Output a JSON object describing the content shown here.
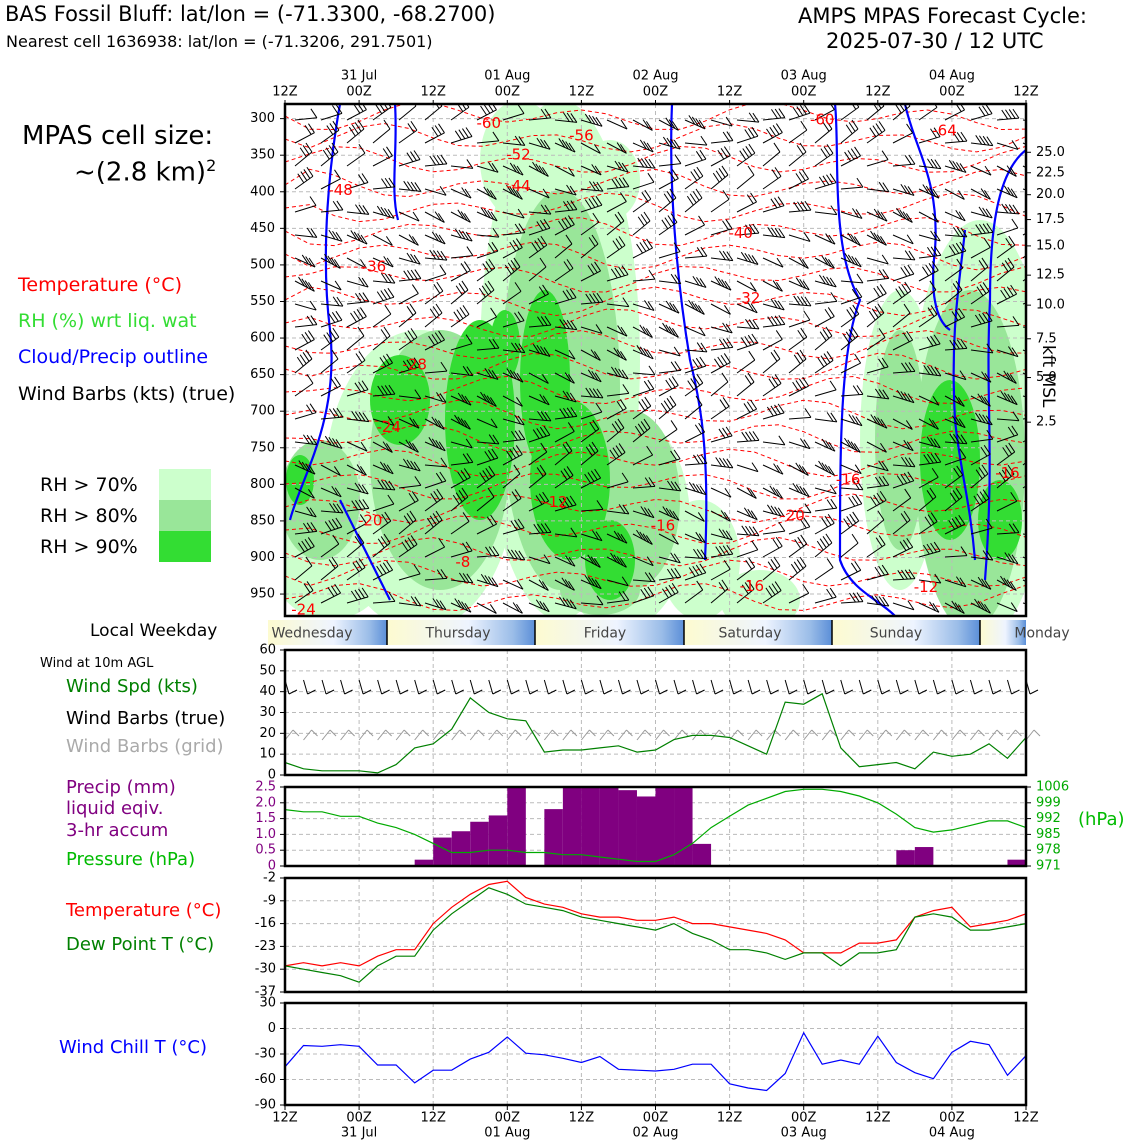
{
  "header": {
    "station_line": "BAS Fossil Bluff: lat/lon = (-71.3300, -68.2700)",
    "cell_line": "Nearest cell 1636938: lat/lon = (-71.3206, 291.7501)",
    "forecast_title": "AMPS MPAS Forecast Cycle:",
    "forecast_cycle": "2025-07-30 / 12 UTC"
  },
  "colors": {
    "temperature": "#ff0000",
    "rh_label": "#33dd33",
    "rh70": "#ccffcc",
    "rh80": "#99e699",
    "rh90": "#33dd33",
    "cloud": "#0000ff",
    "wind_speed": "#008000",
    "wind_grid": "#aaaaaa",
    "precip": "#800080",
    "pressure": "#00aa00",
    "dewpoint": "#008000",
    "windchill": "#0000ff"
  },
  "legend": {
    "cell_size_title": "MPAS cell size:",
    "cell_size_value": "~(2.8 km)",
    "cell_size_exp": "2",
    "temperature": "Temperature (°C)",
    "rh": "RH (%) wrt liq. wat",
    "cloud": "Cloud/Precip outline",
    "wind_barbs": "Wind Barbs (kts) (true)",
    "rh70": "RH > 70%",
    "rh80": "RH > 80%",
    "rh90": "RH > 90%"
  },
  "weekday": {
    "label": "Local Weekday",
    "days": [
      "Wednesday",
      "Thursday",
      "Friday",
      "Saturday",
      "Sunday",
      "Monday"
    ]
  },
  "side_labels": {
    "wind_10m": "Wind at 10m AGL",
    "wind_spd": "Wind Spd (kts)",
    "barbs_true": "Wind Barbs (true)",
    "barbs_grid": "Wind Barbs (grid)",
    "precip1": "Precip (mm)",
    "precip2": "liquid eqiv.",
    "precip3": "3-hr accum",
    "pressure": "Pressure (hPa)",
    "pressure_unit": "(hPa)",
    "temperature": "Temperature (°C)",
    "dewpoint": "Dew Point T (°C)",
    "windchill": "Wind Chill T (°C)",
    "kft": "kft MSL"
  },
  "chart_data": [
    {
      "type": "heatmap",
      "name": "cross-section",
      "x_ticks_top": [
        "12Z",
        "00Z",
        "12Z",
        "00Z",
        "12Z",
        "00Z",
        "12Z",
        "00Z",
        "12Z",
        "00Z",
        "12Z"
      ],
      "date_ticks_top": [
        "31 Jul",
        "01 Aug",
        "02 Aug",
        "03 Aug",
        "04 Aug"
      ],
      "date_tick_index": [
        1,
        3,
        5,
        7,
        9
      ],
      "ylabel_ticks": [
        "300",
        "350",
        "400",
        "450",
        "500",
        "550",
        "600",
        "650",
        "700",
        "750",
        "800",
        "850",
        "900",
        "950"
      ],
      "p_values": [
        300,
        350,
        400,
        450,
        500,
        550,
        600,
        650,
        700,
        750,
        800,
        850,
        900,
        950
      ],
      "ylim": [
        280,
        980
      ],
      "right_ticks": [
        {
          "label": "25.0",
          "p": 346
        },
        {
          "label": "22.5",
          "p": 374
        },
        {
          "label": "20.0",
          "p": 404
        },
        {
          "label": "17.5",
          "p": 438
        },
        {
          "label": "15.0",
          "p": 474
        },
        {
          "label": "12.5",
          "p": 514
        },
        {
          "label": "10.0",
          "p": 555
        },
        {
          "label": "7.5",
          "p": 601
        },
        {
          "label": "5.0",
          "p": 654
        },
        {
          "label": "2.5",
          "p": 715
        }
      ],
      "temperature_labels": [
        {
          "text": "-60",
          "x": 2.75,
          "p": 307
        },
        {
          "text": "-56",
          "x": 4.0,
          "p": 324
        },
        {
          "text": "-60",
          "x": 7.25,
          "p": 302
        },
        {
          "text": "-64",
          "x": 8.9,
          "p": 317
        },
        {
          "text": "-52",
          "x": 3.15,
          "p": 350
        },
        {
          "text": "-48",
          "x": 0.75,
          "p": 398
        },
        {
          "text": "-44",
          "x": 3.15,
          "p": 393
        },
        {
          "text": "-40",
          "x": 6.15,
          "p": 457
        },
        {
          "text": "-36",
          "x": 1.2,
          "p": 503
        },
        {
          "text": "-32",
          "x": 6.25,
          "p": 546
        },
        {
          "text": "-28",
          "x": 1.75,
          "p": 637
        },
        {
          "text": "-24",
          "x": 1.4,
          "p": 722
        },
        {
          "text": "-20",
          "x": 1.15,
          "p": 850
        },
        {
          "text": "-20",
          "x": 6.85,
          "p": 843
        },
        {
          "text": "-16",
          "x": 5.1,
          "p": 857
        },
        {
          "text": "-16",
          "x": 7.6,
          "p": 794
        },
        {
          "text": "-16",
          "x": 9.75,
          "p": 785
        },
        {
          "text": "-16",
          "x": 6.3,
          "p": 940
        },
        {
          "text": "-12",
          "x": 3.65,
          "p": 825
        },
        {
          "text": "-12",
          "x": 8.65,
          "p": 941
        },
        {
          "text": "-8",
          "x": 2.4,
          "p": 907
        },
        {
          "text": "-24",
          "x": 0.25,
          "p": 972
        }
      ]
    },
    {
      "type": "line",
      "name": "wind-speed",
      "x": [
        0,
        0.25,
        0.5,
        0.75,
        1.0,
        1.25,
        1.5,
        1.75,
        2.0,
        2.25,
        2.5,
        2.75,
        3.0,
        3.25,
        3.5,
        3.75,
        4.0,
        4.25,
        4.5,
        4.75,
        5.0,
        5.25,
        5.5,
        5.75,
        6.0,
        6.25,
        6.5,
        6.75,
        7.0,
        7.25,
        7.5,
        7.75,
        8.0,
        8.25,
        8.5,
        8.75,
        9.0,
        9.25,
        9.5,
        9.75,
        10.0
      ],
      "values": [
        6,
        3,
        2,
        2,
        2,
        1,
        5,
        13,
        15,
        22,
        37,
        30,
        27,
        26,
        11,
        12,
        12,
        13,
        14,
        11,
        12,
        17,
        19,
        19,
        18,
        14,
        10,
        35,
        34,
        39,
        13,
        4,
        5,
        6,
        3,
        11,
        9,
        10,
        15,
        8,
        18
      ],
      "ylim": [
        0,
        60
      ],
      "y_ticks": [
        "0",
        "10",
        "20",
        "30",
        "40",
        "50",
        "60"
      ],
      "ylabel": "Wind Spd (kts)"
    },
    {
      "type": "bar",
      "name": "precip",
      "bins": [
        {
          "x0": 1.75,
          "x1": 2.0,
          "v": 0.2
        },
        {
          "x0": 2.0,
          "x1": 2.25,
          "v": 0.9
        },
        {
          "x0": 2.25,
          "x1": 2.5,
          "v": 1.1
        },
        {
          "x0": 2.5,
          "x1": 2.75,
          "v": 1.4
        },
        {
          "x0": 2.75,
          "x1": 3.0,
          "v": 1.6
        },
        {
          "x0": 3.0,
          "x1": 3.25,
          "v": 2.5
        },
        {
          "x0": 3.5,
          "x1": 3.75,
          "v": 1.8
        },
        {
          "x0": 3.75,
          "x1": 4.0,
          "v": 2.5
        },
        {
          "x0": 4.0,
          "x1": 4.25,
          "v": 2.5
        },
        {
          "x0": 4.25,
          "x1": 4.5,
          "v": 2.5
        },
        {
          "x0": 4.5,
          "x1": 4.75,
          "v": 2.4
        },
        {
          "x0": 4.75,
          "x1": 5.0,
          "v": 2.2
        },
        {
          "x0": 5.0,
          "x1": 5.25,
          "v": 2.5
        },
        {
          "x0": 5.25,
          "x1": 5.5,
          "v": 2.5
        },
        {
          "x0": 5.5,
          "x1": 5.75,
          "v": 0.7
        },
        {
          "x0": 8.25,
          "x1": 8.5,
          "v": 0.5
        },
        {
          "x0": 8.5,
          "x1": 8.75,
          "v": 0.6
        },
        {
          "x0": 9.75,
          "x1": 10.0,
          "v": 0.2
        }
      ],
      "ylim": [
        0,
        2.5
      ],
      "y_ticks": [
        "0",
        "0.5",
        "1.0",
        "1.5",
        "2.0",
        "2.5"
      ]
    },
    {
      "type": "line",
      "name": "pressure",
      "x": [
        0,
        0.25,
        0.5,
        0.75,
        1.0,
        1.25,
        1.5,
        1.75,
        2.0,
        2.25,
        2.5,
        2.75,
        3.0,
        3.25,
        3.5,
        3.75,
        4.0,
        4.25,
        4.5,
        4.75,
        5.0,
        5.25,
        5.5,
        5.75,
        6.0,
        6.25,
        6.5,
        6.75,
        7.0,
        7.25,
        7.5,
        7.75,
        8.0,
        8.25,
        8.5,
        8.75,
        9.0,
        9.25,
        9.5,
        9.75,
        10.0
      ],
      "values": [
        996,
        995,
        995,
        993,
        993,
        990,
        988,
        985,
        981,
        977,
        977,
        978,
        978,
        977,
        977,
        976,
        976,
        975,
        974,
        973,
        973,
        976,
        981,
        988,
        993,
        998,
        1001,
        1004,
        1005,
        1005,
        1004,
        1002,
        999,
        994,
        988,
        986,
        987,
        989,
        991,
        991,
        988
      ],
      "ylim": [
        971,
        1006
      ],
      "y_ticks": [
        "971",
        "978",
        "985",
        "992",
        "999",
        "1006"
      ]
    },
    {
      "type": "line",
      "name": "temperature-dewpoint",
      "x": [
        0,
        0.25,
        0.5,
        0.75,
        1.0,
        1.25,
        1.5,
        1.75,
        2.0,
        2.25,
        2.5,
        2.75,
        3.0,
        3.25,
        3.5,
        3.75,
        4.0,
        4.25,
        4.5,
        4.75,
        5.0,
        5.25,
        5.5,
        5.75,
        6.0,
        6.25,
        6.5,
        6.75,
        7.0,
        7.25,
        7.5,
        7.75,
        8.0,
        8.25,
        8.5,
        8.75,
        9.0,
        9.25,
        9.5,
        9.75,
        10.0
      ],
      "series": [
        {
          "name": "Temperature (°C)",
          "values": [
            -29,
            -28,
            -29,
            -28,
            -29,
            -26,
            -24,
            -24,
            -16,
            -11,
            -7,
            -4,
            -3,
            -8,
            -10,
            -11,
            -13,
            -14,
            -14,
            -15,
            -15,
            -14,
            -16,
            -16,
            -17,
            -18,
            -19,
            -21,
            -25,
            -25,
            -25,
            -22,
            -22,
            -21,
            -14,
            -12,
            -11,
            -17,
            -16,
            -15,
            -13
          ]
        },
        {
          "name": "Dew Point T (°C)",
          "values": [
            -29,
            -30,
            -31,
            -32,
            -34,
            -29,
            -26,
            -26,
            -18,
            -13,
            -9,
            -5,
            -7,
            -10,
            -11,
            -12,
            -14,
            -15,
            -16,
            -17,
            -18,
            -16,
            -19,
            -21,
            -24,
            -24,
            -25,
            -27,
            -25,
            -25,
            -29,
            -25,
            -25,
            -24,
            -14,
            -13,
            -14,
            -18,
            -18,
            -17,
            -16
          ]
        }
      ],
      "ylim": [
        -37,
        -2
      ],
      "y_ticks": [
        "-37",
        "-30",
        "-23",
        "-16",
        "-9",
        "-2"
      ]
    },
    {
      "type": "line",
      "name": "wind-chill",
      "x": [
        0,
        0.25,
        0.5,
        0.75,
        1.0,
        1.25,
        1.5,
        1.75,
        2.0,
        2.25,
        2.5,
        2.75,
        3.0,
        3.25,
        3.5,
        3.75,
        4.0,
        4.25,
        4.5,
        4.75,
        5.0,
        5.25,
        5.5,
        5.75,
        6.0,
        6.25,
        6.5,
        6.75,
        7.0,
        7.25,
        7.5,
        7.75,
        8.0,
        8.25,
        8.5,
        8.75,
        9.0,
        9.25,
        9.5,
        9.75,
        10.0
      ],
      "values": [
        -45,
        -20,
        -21,
        -19,
        -21,
        -43,
        -43,
        -64,
        -49,
        -49,
        -36,
        -28,
        -10,
        -29,
        -31,
        -35,
        -40,
        -33,
        -48,
        -49,
        -50,
        -48,
        -42,
        -42,
        -65,
        -70,
        -73,
        -53,
        -5,
        -42,
        -37,
        -42,
        -9,
        -40,
        -52,
        -59,
        -28,
        -15,
        -19,
        -55,
        -32
      ],
      "ylim": [
        -90,
        30
      ],
      "y_ticks": [
        "-90",
        "-60",
        "-30",
        "0",
        "30"
      ]
    }
  ],
  "x_ticks_bottom": [
    "12Z",
    "00Z",
    "12Z",
    "00Z",
    "12Z",
    "00Z",
    "12Z",
    "00Z",
    "12Z",
    "00Z",
    "12Z"
  ],
  "date_ticks_bottom": [
    "31 Jul",
    "01 Aug",
    "02 Aug",
    "03 Aug",
    "04 Aug"
  ]
}
